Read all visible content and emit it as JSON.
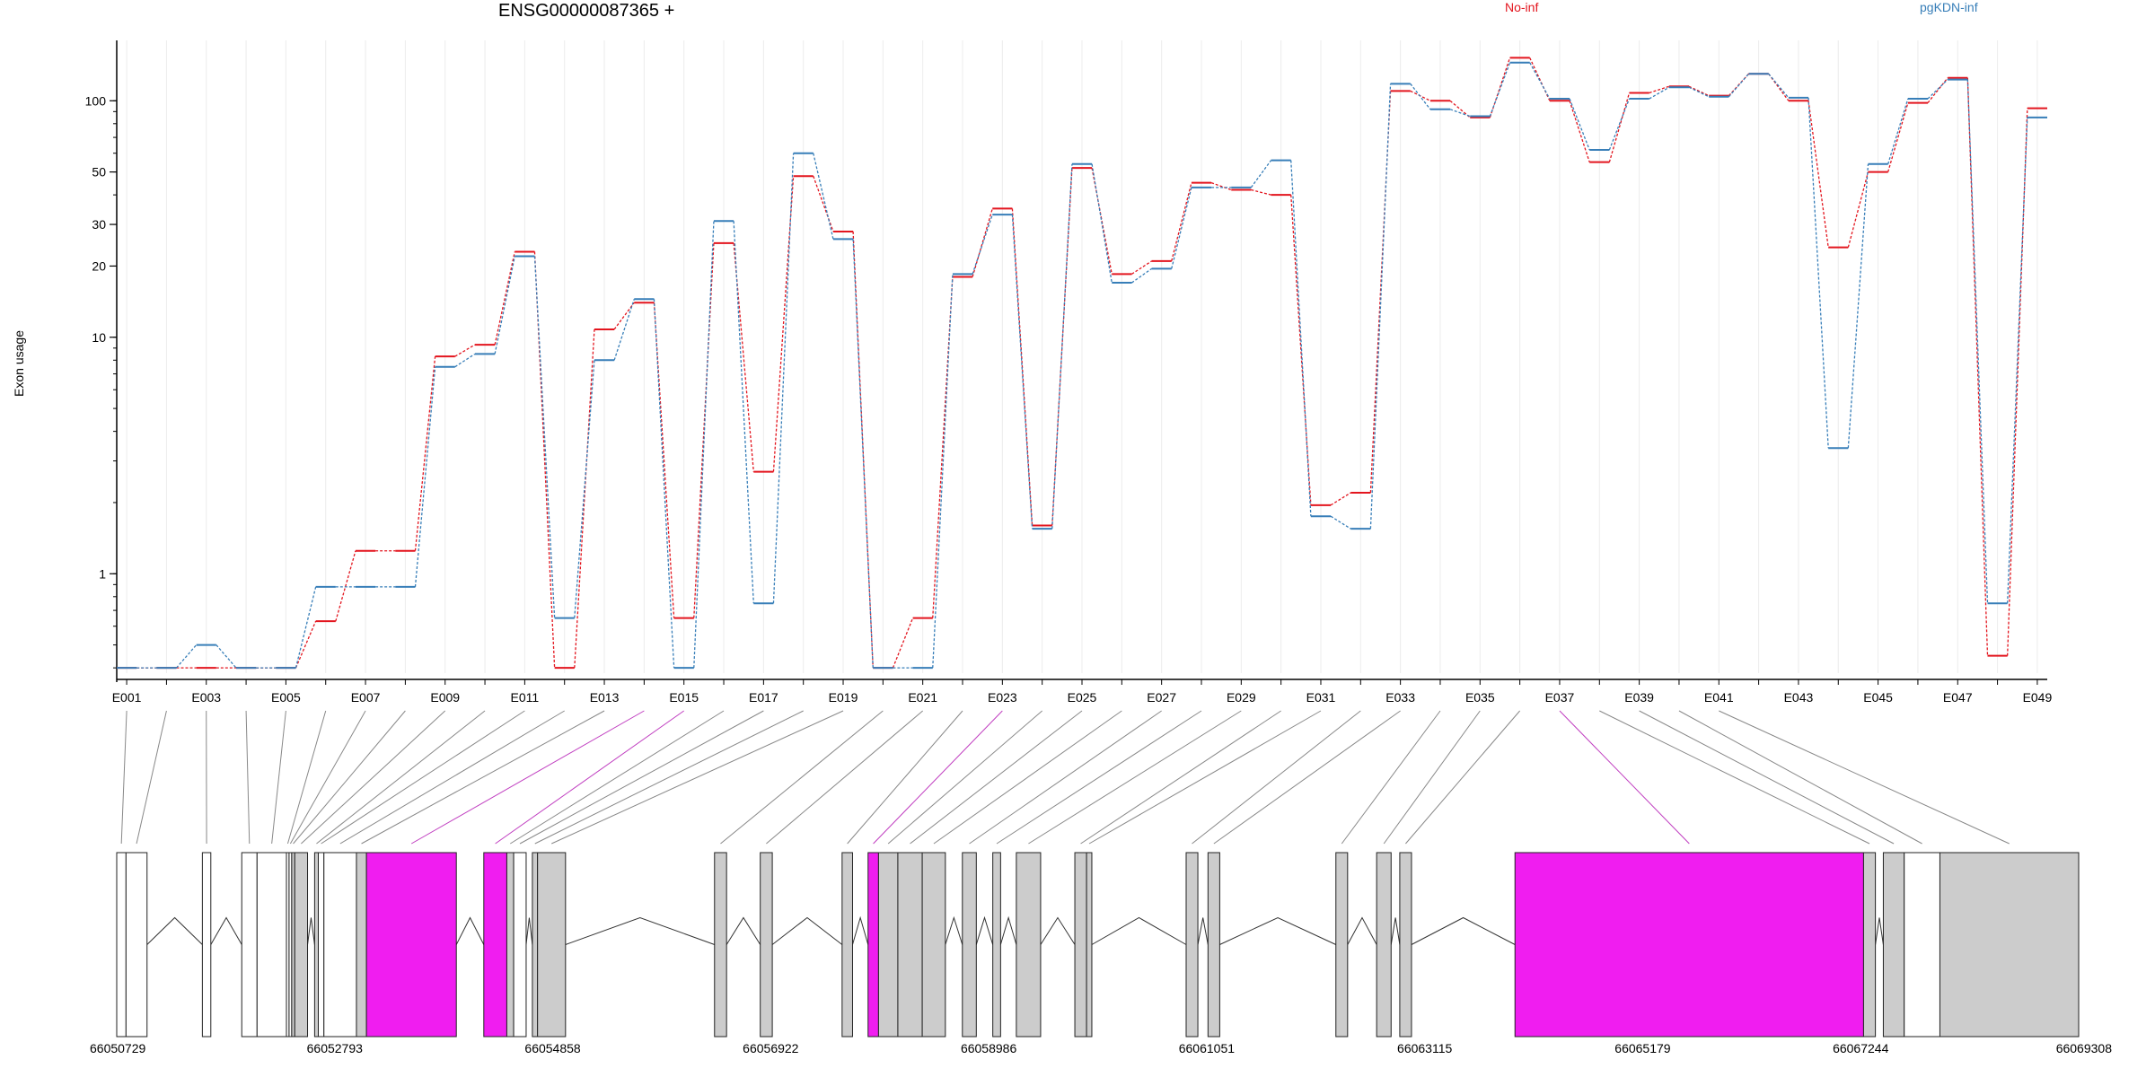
{
  "chart_data": {
    "type": "line",
    "title": "ENSG00000087365 +",
    "ylabel": "Exon usage",
    "yscale": "log",
    "ylim": [
      0.38,
      180
    ],
    "yticks": [
      "1",
      "10",
      "20",
      "30",
      "50",
      "100"
    ],
    "yticks_values": [
      1,
      10,
      20,
      30,
      50,
      100
    ],
    "grid": "vertical",
    "legend_placement": "top",
    "categories": [
      "E001",
      "E002",
      "E003",
      "E004",
      "E005",
      "E006",
      "E007",
      "E008",
      "E009",
      "E010",
      "E011",
      "E012",
      "E013",
      "E014",
      "E015",
      "E016",
      "E017",
      "E018",
      "E019",
      "E020",
      "E021",
      "E022",
      "E023",
      "E024",
      "E025",
      "E026",
      "E027",
      "E028",
      "E029",
      "E030",
      "E031",
      "E032",
      "E033",
      "E034",
      "E035",
      "E036",
      "E037",
      "E038",
      "E039",
      "E040",
      "E041",
      "E042",
      "E043",
      "E044",
      "E045",
      "E046",
      "E047",
      "E048",
      "E049"
    ],
    "xtick_labels": [
      "E001",
      "E003",
      "E005",
      "E007",
      "E009",
      "E011",
      "E013",
      "E015",
      "E017",
      "E019",
      "E021",
      "E023",
      "E025",
      "E027",
      "E029",
      "E031",
      "E033",
      "E035",
      "E037",
      "E039",
      "E041",
      "E043",
      "E045",
      "E047",
      "E049"
    ],
    "series": [
      {
        "name": "No-inf",
        "color": "#e3151e",
        "values": [
          0.4,
          0.4,
          0.4,
          0.4,
          0.4,
          0.63,
          1.25,
          1.25,
          8.3,
          9.3,
          23,
          0.4,
          10.8,
          14,
          0.65,
          25,
          2.7,
          48,
          28,
          0.4,
          0.65,
          18,
          35,
          1.6,
          52,
          18.5,
          21,
          45,
          42,
          40,
          1.95,
          2.2,
          110,
          100,
          85,
          152,
          100,
          55,
          108,
          115,
          105,
          130,
          100,
          24,
          50,
          98,
          125,
          0.45,
          93
        ]
      },
      {
        "name": "pgKDN-inf",
        "color": "#377eb8",
        "values": [
          0.4,
          0.4,
          0.5,
          0.4,
          0.4,
          0.88,
          0.88,
          0.88,
          7.5,
          8.5,
          22,
          0.65,
          8,
          14.5,
          0.4,
          31,
          0.75,
          60,
          26,
          0.4,
          0.4,
          18.5,
          33,
          1.55,
          54,
          17,
          19.5,
          43,
          43,
          56,
          1.75,
          1.55,
          118,
          92,
          86,
          145,
          102,
          62,
          102,
          114,
          104,
          130,
          103,
          3.4,
          54,
          102,
          123,
          0.75,
          85
        ]
      }
    ],
    "genomic_axis": {
      "tick_labels": [
        "66050729",
        "66052793",
        "66054858",
        "66056922",
        "66058986",
        "66061051",
        "66063115",
        "66065179",
        "66067244",
        "66069308"
      ],
      "start": 66050729,
      "end": 66069308
    },
    "gene_model": {
      "intervals": [
        {
          "start": 66050729,
          "end": 66050817,
          "fill": "white"
        },
        {
          "start": 66050817,
          "end": 66051016,
          "fill": "white"
        },
        {
          "start": 66051540,
          "end": 66051620,
          "fill": "white"
        },
        {
          "start": 66051913,
          "end": 66052058,
          "fill": "white"
        },
        {
          "start": 66052058,
          "end": 66052336,
          "fill": "white"
        },
        {
          "start": 66052336,
          "end": 66052361,
          "fill": "white"
        },
        {
          "start": 66052361,
          "end": 66052386,
          "fill": "white"
        },
        {
          "start": 66052386,
          "end": 66052415,
          "fill": "gray"
        },
        {
          "start": 66052415,
          "end": 66052536,
          "fill": "gray"
        },
        {
          "start": 66052603,
          "end": 66052638,
          "fill": "gray"
        },
        {
          "start": 66052638,
          "end": 66052691,
          "fill": "white"
        },
        {
          "start": 66052691,
          "end": 66052999,
          "fill": "white"
        },
        {
          "start": 66052999,
          "end": 66053094,
          "fill": "gray"
        },
        {
          "start": 66053094,
          "end": 66053945,
          "fill": "magenta"
        },
        {
          "start": 66054205,
          "end": 66054423,
          "fill": "magenta"
        },
        {
          "start": 66054423,
          "end": 66054488,
          "fill": "gray"
        },
        {
          "start": 66054488,
          "end": 66054606,
          "fill": "white"
        },
        {
          "start": 66054665,
          "end": 66054714,
          "fill": "gray"
        },
        {
          "start": 66054714,
          "end": 66054979,
          "fill": "gray"
        },
        {
          "start": 66056390,
          "end": 66056504,
          "fill": "gray"
        },
        {
          "start": 66056823,
          "end": 66056937,
          "fill": "gray"
        },
        {
          "start": 66057598,
          "end": 66057697,
          "fill": "gray"
        },
        {
          "start": 66057844,
          "end": 66057943,
          "fill": "magenta"
        },
        {
          "start": 66057943,
          "end": 66058126,
          "fill": "gray"
        },
        {
          "start": 66058126,
          "end": 66058357,
          "fill": "gray"
        },
        {
          "start": 66058357,
          "end": 66058576,
          "fill": "gray"
        },
        {
          "start": 66058737,
          "end": 66058869,
          "fill": "gray"
        },
        {
          "start": 66059025,
          "end": 66059099,
          "fill": "gray"
        },
        {
          "start": 66059248,
          "end": 66059478,
          "fill": "gray"
        },
        {
          "start": 66059802,
          "end": 66059913,
          "fill": "gray"
        },
        {
          "start": 66059913,
          "end": 66059963,
          "fill": "gray"
        },
        {
          "start": 66060856,
          "end": 66060967,
          "fill": "gray"
        },
        {
          "start": 66061063,
          "end": 66061174,
          "fill": "gray"
        },
        {
          "start": 66062274,
          "end": 66062385,
          "fill": "gray"
        },
        {
          "start": 66062660,
          "end": 66062797,
          "fill": "gray"
        },
        {
          "start": 66062879,
          "end": 66062990,
          "fill": "gray"
        },
        {
          "start": 66063970,
          "end": 66067271,
          "fill": "magenta"
        },
        {
          "start": 66067271,
          "end": 66067383,
          "fill": "gray"
        },
        {
          "start": 66067458,
          "end": 66067656,
          "fill": "gray"
        },
        {
          "start": 66067656,
          "end": 66067994,
          "fill": "white"
        },
        {
          "start": 66067994,
          "end": 66069308,
          "fill": "gray"
        }
      ]
    }
  }
}
